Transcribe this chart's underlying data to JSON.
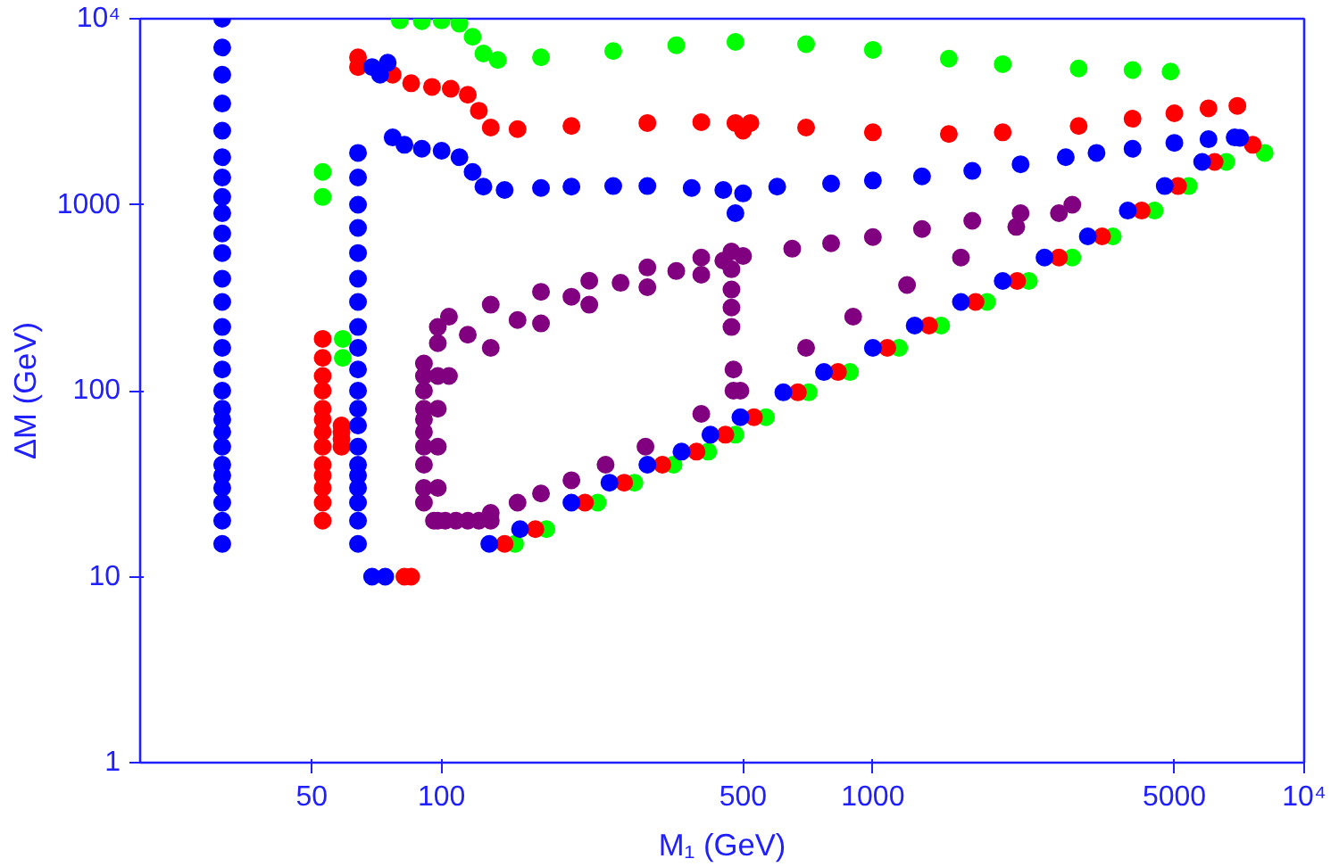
{
  "chart_data": {
    "type": "scatter",
    "xlabel": "M₁ (GeV)",
    "ylabel": "ΔM (GeV)",
    "log": "xy",
    "marker": "circle",
    "grid": false,
    "xlim": [
      20,
      10000
    ],
    "ylim": [
      1,
      10000
    ],
    "xticks": [
      50,
      100,
      500,
      1000,
      5000,
      {
        "value": 10000,
        "label": "10⁴"
      }
    ],
    "yticks": [
      1,
      10,
      100,
      1000,
      {
        "value": 10000,
        "label": "10⁴"
      }
    ],
    "series": [
      {
        "color": "#00ff00",
        "x": [
          53,
          53,
          59,
          59,
          80,
          90,
          100,
          110,
          118,
          125,
          135,
          170,
          250,
          350,
          480,
          700,
          1000,
          1500,
          2000,
          3000,
          4000,
          4900,
          148,
          175,
          230,
          280,
          345,
          415,
          480,
          565,
          710,
          885,
          1150,
          1440,
          1840,
          2300,
          2900,
          3600,
          4500,
          5400,
          6600,
          8100
        ],
        "values": [
          1100,
          1500,
          150,
          190,
          9800,
          9700,
          9800,
          9400,
          8000,
          6500,
          6000,
          6200,
          6700,
          7200,
          7500,
          7300,
          6800,
          6100,
          5700,
          5400,
          5300,
          5200,
          15,
          18,
          25,
          32,
          40,
          47,
          58,
          72,
          98,
          126,
          170,
          224,
          300,
          389,
          520,
          676,
          930,
          1260,
          1700,
          1900
        ]
      },
      {
        "color": "#ff0000",
        "x": [
          53,
          53,
          53,
          53,
          53,
          53,
          53,
          53,
          53,
          53,
          53,
          53,
          53,
          58.6,
          58.6,
          58.6,
          58.6,
          82,
          85,
          64,
          64,
          77,
          85,
          95,
          105,
          115,
          122,
          130,
          150,
          200,
          300,
          400,
          480,
          500,
          520,
          700,
          1000,
          1500,
          2000,
          3000,
          4000,
          5000,
          6000,
          7000,
          140,
          165,
          215,
          265,
          325,
          390,
          455,
          530,
          670,
          830,
          1080,
          1350,
          1730,
          2160,
          2700,
          3400,
          4200,
          5100,
          6200,
          7600
        ],
        "values": [
          20,
          25,
          30,
          35,
          40,
          50,
          60,
          70,
          80,
          100,
          120,
          150,
          190,
          50,
          55,
          60,
          65,
          10,
          10,
          5500,
          6200,
          5000,
          4500,
          4300,
          4200,
          3900,
          3200,
          2600,
          2550,
          2650,
          2750,
          2780,
          2750,
          2500,
          2750,
          2600,
          2450,
          2400,
          2450,
          2650,
          2900,
          3100,
          3300,
          3400,
          15,
          18,
          25,
          32,
          40,
          47,
          58,
          72,
          98,
          126,
          170,
          224,
          300,
          389,
          520,
          676,
          930,
          1260,
          1700,
          2100
        ]
      },
      {
        "color": "#0000ff",
        "x": [
          31,
          31,
          31,
          31,
          31,
          31,
          31,
          31,
          31,
          31,
          31,
          31,
          31,
          31,
          31,
          31,
          31,
          31,
          31,
          31,
          31,
          31,
          31,
          31,
          31,
          31,
          31,
          64,
          64,
          64,
          64,
          64,
          64,
          64,
          64,
          64,
          64,
          64,
          64,
          64,
          64,
          64,
          64,
          64,
          64,
          64,
          64,
          69,
          74,
          69,
          72,
          75,
          77,
          82,
          90,
          100,
          110,
          118,
          125,
          140,
          170,
          200,
          250,
          300,
          380,
          450,
          480,
          500,
          600,
          800,
          1000,
          1300,
          1700,
          2200,
          2800,
          3300,
          4000,
          5000,
          6000,
          6900,
          129,
          152,
          200,
          245,
          300,
          360,
          420,
          493,
          620,
          770,
          1000,
          1250,
          1600,
          2000,
          2500,
          3150,
          3900,
          4750,
          5800,
          7100
        ],
        "values": [
          15,
          20,
          25,
          30,
          35,
          40,
          50,
          60,
          70,
          80,
          100,
          130,
          170,
          220,
          300,
          400,
          550,
          700,
          900,
          1100,
          1400,
          1800,
          2500,
          3500,
          5000,
          7000,
          10000,
          15,
          20,
          25,
          30,
          35,
          40,
          50,
          65,
          80,
          100,
          130,
          170,
          220,
          300,
          400,
          550,
          750,
          1000,
          1400,
          1900,
          10,
          10,
          5500,
          5000,
          5800,
          2300,
          2100,
          2000,
          1950,
          1800,
          1500,
          1250,
          1200,
          1230,
          1250,
          1260,
          1260,
          1230,
          1200,
          900,
          1150,
          1250,
          1300,
          1350,
          1420,
          1520,
          1650,
          1800,
          1900,
          2000,
          2150,
          2250,
          2300,
          15,
          18,
          25,
          32,
          40,
          47,
          58,
          72,
          98,
          126,
          170,
          224,
          300,
          389,
          520,
          676,
          930,
          1260,
          1700,
          2290
        ]
      },
      {
        "color": "#800080",
        "x": [
          91,
          91,
          91,
          91,
          91,
          91,
          91,
          91,
          91,
          91,
          98,
          98,
          98,
          98,
          98,
          98,
          98,
          96,
          102,
          108,
          115,
          122,
          130,
          104,
          130,
          170,
          220,
          300,
          400,
          470,
          104,
          130,
          170,
          220,
          300,
          400,
          470,
          115,
          150,
          200,
          260,
          350,
          450,
          500,
          650,
          800,
          1000,
          1300,
          1700,
          2200,
          2900,
          470,
          470,
          470,
          475,
          475,
          2700,
          2150,
          1600,
          1200,
          900,
          700,
          493,
          400,
          297,
          240,
          200,
          170,
          150,
          130
        ],
        "values": [
          25,
          30,
          40,
          50,
          60,
          70,
          80,
          100,
          120,
          140,
          20,
          30,
          50,
          80,
          120,
          180,
          220,
          20,
          20,
          20,
          20,
          20,
          20,
          250,
          290,
          340,
          390,
          460,
          520,
          560,
          120,
          170,
          230,
          290,
          360,
          420,
          450,
          200,
          240,
          320,
          380,
          440,
          500,
          530,
          580,
          620,
          670,
          740,
          820,
          900,
          1000,
          350,
          280,
          220,
          130,
          100,
          900,
          760,
          520,
          370,
          250,
          170,
          100,
          75,
          50,
          40,
          33,
          28,
          25,
          22
        ]
      }
    ]
  }
}
